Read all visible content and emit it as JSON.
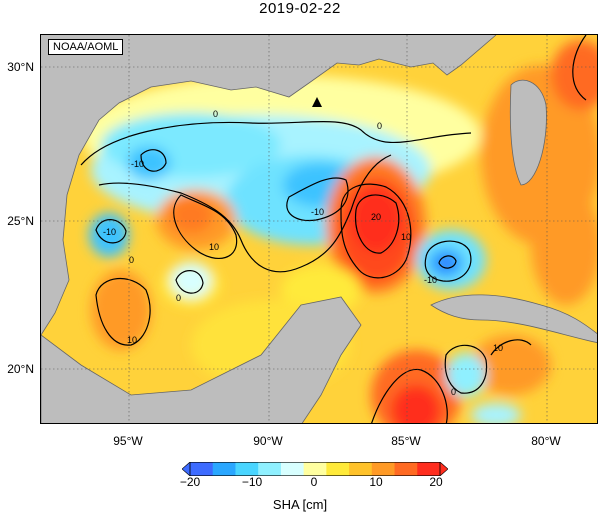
{
  "title": "2019-02-22",
  "source": "NOAA/AOML",
  "map": {
    "lon_ticks": [
      "95°W",
      "90°W",
      "85°W",
      "80°W"
    ],
    "lat_ticks": [
      "30°N",
      "25°N",
      "20°N"
    ],
    "colors": {
      "land": "#bdbdbd",
      "ocean_base": "#ffd23a",
      "contour": "#000000",
      "grid": "#777777"
    },
    "marker": "station-triangle"
  },
  "colorbar": {
    "ticks": [
      "−20",
      "−10",
      "0",
      "10",
      "20"
    ],
    "label": "SHA [cm]",
    "stops": [
      "#3d6bff",
      "#2aa7ff",
      "#49d5ff",
      "#8ff0ff",
      "#d8ffff",
      "#ffffa0",
      "#ffea3a",
      "#ffc22a",
      "#ff9a26",
      "#ff6a22",
      "#ff2d1e"
    ]
  }
}
